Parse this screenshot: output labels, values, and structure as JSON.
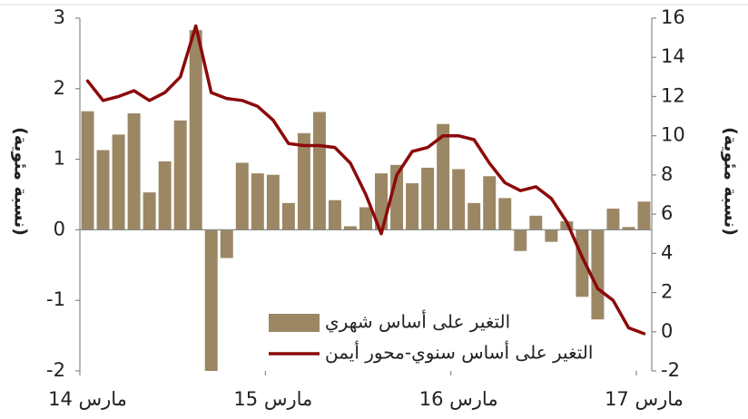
{
  "chart_data": {
    "type": "bar",
    "y_label": "(نسبة مئوية)",
    "y2_label": "(نسبة مئوية)",
    "categories": [
      "مارس 14",
      null,
      null,
      null,
      null,
      null,
      null,
      null,
      null,
      null,
      null,
      null,
      "مارس 15",
      null,
      null,
      null,
      null,
      null,
      null,
      null,
      null,
      null,
      null,
      null,
      "مارس 16",
      null,
      null,
      null,
      null,
      null,
      null,
      null,
      null,
      null,
      null,
      null,
      "مارس 17"
    ],
    "series": [
      {
        "name": "التغير على أساس شهري",
        "type": "bar",
        "color": "#9c8764",
        "values": [
          1.68,
          1.13,
          1.35,
          1.65,
          0.53,
          0.97,
          1.55,
          2.83,
          -2.0,
          -0.4,
          0.95,
          0.8,
          0.78,
          0.38,
          1.37,
          1.67,
          0.42,
          0.05,
          0.32,
          0.8,
          0.92,
          0.66,
          0.88,
          1.5,
          0.86,
          0.38,
          0.76,
          0.45,
          -0.3,
          0.2,
          -0.17,
          0.12,
          -0.95,
          -1.27,
          0.3,
          0.04,
          0.4
        ]
      },
      {
        "name": "التغير على أساس سنوي-محور أيمن",
        "type": "line",
        "axis": "y2",
        "color": "#8b0a0a",
        "values": [
          12.8,
          11.8,
          12.0,
          12.3,
          11.8,
          12.2,
          13.0,
          15.6,
          12.2,
          11.9,
          11.8,
          11.5,
          10.8,
          9.6,
          9.5,
          9.5,
          9.4,
          8.6,
          7.0,
          5.0,
          8.0,
          9.2,
          9.4,
          10.0,
          10.0,
          9.8,
          8.6,
          7.6,
          7.2,
          7.4,
          6.8,
          5.6,
          3.8,
          2.2,
          1.6,
          0.2,
          -0.1
        ]
      }
    ],
    "ylim": [
      -2,
      3
    ],
    "yticks": [
      -2,
      -1,
      0,
      1,
      2,
      3
    ],
    "y2lim": [
      -2,
      16
    ],
    "y2ticks": [
      -2,
      0,
      2,
      4,
      6,
      8,
      10,
      12,
      14,
      16
    ],
    "legend": "bottom"
  }
}
